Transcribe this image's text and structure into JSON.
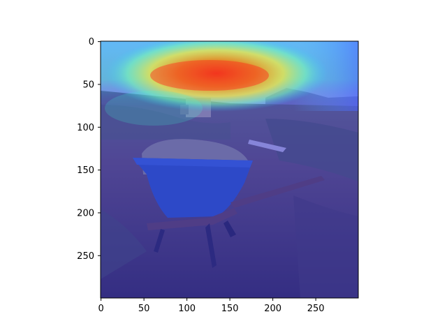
{
  "figure": {
    "image": {
      "description_tag": "wheelbarrow-with-hay-on-hillside",
      "overlay": "jet-heatmap",
      "colors": {
        "sky": "#cfd6d8",
        "mountain": "#8d8f95",
        "ground_dark": "#4a3d33",
        "ground_light": "#8a7560",
        "vegetation": "#5f6b45",
        "hay": "#9a9a6a",
        "barrow_tub": "#2f5fa0",
        "barrow_frame": "#6a4a30"
      }
    },
    "x_axis": {
      "range": [
        0,
        299
      ],
      "ticks": [
        {
          "value": 0,
          "label": "0"
        },
        {
          "value": 50,
          "label": "50"
        },
        {
          "value": 100,
          "label": "100"
        },
        {
          "value": 150,
          "label": "150"
        },
        {
          "value": 200,
          "label": "200"
        },
        {
          "value": 250,
          "label": "250"
        }
      ]
    },
    "y_axis": {
      "range": [
        0,
        299
      ],
      "ticks": [
        {
          "value": 0,
          "label": "0"
        },
        {
          "value": 50,
          "label": "50"
        },
        {
          "value": 100,
          "label": "100"
        },
        {
          "value": 150,
          "label": "150"
        },
        {
          "value": 200,
          "label": "200"
        },
        {
          "value": 250,
          "label": "250"
        }
      ]
    }
  }
}
